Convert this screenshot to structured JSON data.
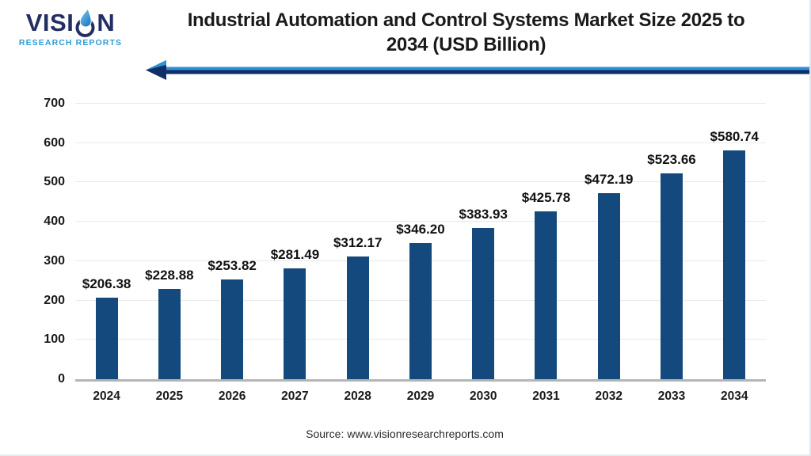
{
  "logo": {
    "brand": "VISION",
    "brand_prefix": "VISI",
    "brand_suffix": "N",
    "tagline": "RESEARCH REPORTS"
  },
  "header": {
    "title_line1": "Industrial Automation and Control Systems Market Size 2025 to",
    "title_line2": "2034 (USD Billion)"
  },
  "source": {
    "text": "Source: www.visionresearchreports.com"
  },
  "colors": {
    "bar": "#14497e",
    "arrow_light": "#2e93d4",
    "arrow_dark": "#122e66",
    "logo_navy": "#232e64",
    "logo_blue": "#2e9bd6",
    "grid": "#e9e9e9",
    "baseline": "#b5b5b5",
    "title_text": "#1a1a1a"
  },
  "chart_data": {
    "type": "bar",
    "title": "Industrial Automation and Control Systems Market Size 2025 to 2034 (USD Billion)",
    "categories": [
      "2024",
      "2025",
      "2026",
      "2027",
      "2028",
      "2029",
      "2030",
      "2031",
      "2032",
      "2033",
      "2034"
    ],
    "values": [
      206.38,
      228.88,
      253.82,
      281.49,
      312.17,
      346.2,
      383.93,
      425.78,
      472.19,
      523.66,
      580.74
    ],
    "labels": [
      "$206.38",
      "$228.88",
      "$253.82",
      "$281.49",
      "$312.17",
      "$346.20",
      "$383.93",
      "$425.78",
      "$472.19",
      "$523.66",
      "$580.74"
    ],
    "unit": "USD Billion",
    "xlabel": "",
    "ylabel": "",
    "ylim": [
      0,
      700
    ],
    "yticks": [
      0,
      100,
      200,
      300,
      400,
      500,
      600,
      700
    ],
    "grid": true,
    "legend": false
  }
}
